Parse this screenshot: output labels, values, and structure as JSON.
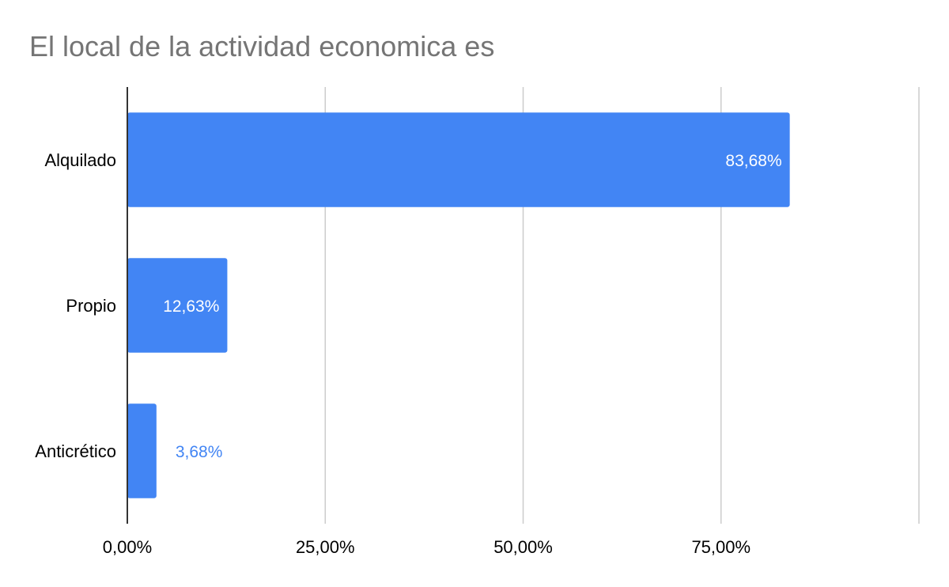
{
  "chart_data": {
    "type": "bar",
    "orientation": "horizontal",
    "title": "El local de la actividad economica es",
    "categories": [
      "Alquilado",
      "Propio",
      "Anticrético"
    ],
    "values": [
      83.68,
      12.63,
      3.68
    ],
    "value_labels": [
      "83,68%",
      "12,63%",
      "3,68%"
    ],
    "xlim": [
      0,
      100
    ],
    "x_ticks": [
      0,
      25,
      50,
      75,
      100
    ],
    "x_tick_labels": [
      "0,00%",
      "25,00%",
      "50,00%",
      "75,00%",
      ""
    ],
    "grid": true,
    "legend": "none",
    "bar_color": "#4285f4",
    "inside_label_color": "#ffffff",
    "outside_label_color": "#4285f4",
    "gridline_color": "#cccccc",
    "axis_color": "#333333"
  }
}
